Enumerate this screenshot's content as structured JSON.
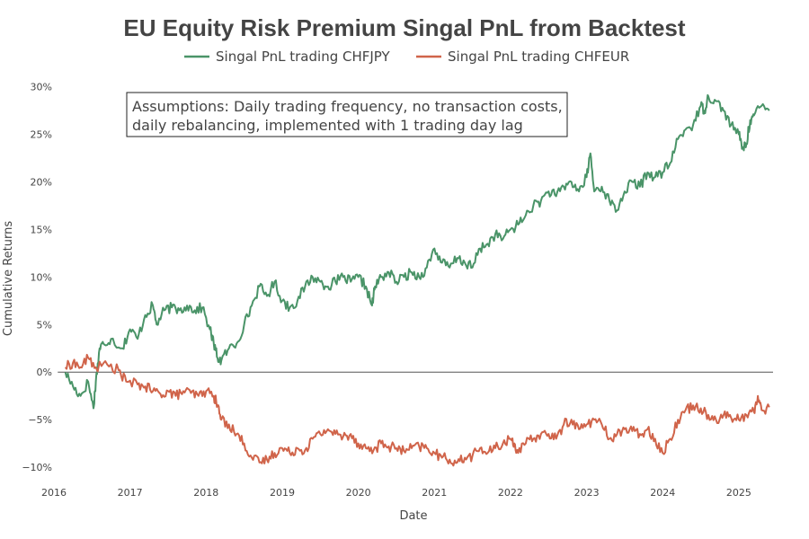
{
  "chart_data": {
    "type": "line",
    "title": "EU Equity Risk Premium Singal PnL from Backtest",
    "xlabel": "Date",
    "ylabel": "Cumulative Returns",
    "xlim": [
      2016.0,
      2025.45
    ],
    "ylim": [
      -11.5,
      31.0
    ],
    "x_ticks": [
      2016,
      2017,
      2018,
      2019,
      2020,
      2021,
      2022,
      2023,
      2024,
      2025
    ],
    "x_tick_labels": [
      "2016",
      "2017",
      "2018",
      "2019",
      "2020",
      "2021",
      "2022",
      "2023",
      "2024",
      "2025"
    ],
    "y_ticks": [
      -10,
      -5,
      0,
      5,
      10,
      15,
      20,
      25,
      30
    ],
    "y_tick_labels": [
      "−10%",
      "−5%",
      "0%",
      "5%",
      "10%",
      "15%",
      "20%",
      "25%",
      "30%"
    ],
    "zero_line": true,
    "grid": false,
    "legend_position": "top-center",
    "annotation": {
      "line1": "Assumptions: Daily trading frequency, no transaction costs,",
      "line2": "daily rebalancing, implemented with 1 trading day lag"
    },
    "series": [
      {
        "name": "Singal PnL trading CHFJPY",
        "color": "#4a9468",
        "x": [
          2016.15,
          2016.25,
          2016.35,
          2016.45,
          2016.52,
          2016.55,
          2016.6,
          2016.65,
          2016.75,
          2016.9,
          2017.0,
          2017.1,
          2017.2,
          2017.3,
          2017.35,
          2017.45,
          2017.55,
          2017.65,
          2017.75,
          2017.85,
          2017.95,
          2018.05,
          2018.1,
          2018.15,
          2018.2,
          2018.3,
          2018.4,
          2018.5,
          2018.6,
          2018.7,
          2018.8,
          2018.9,
          2019.0,
          2019.1,
          2019.2,
          2019.3,
          2019.4,
          2019.5,
          2019.6,
          2019.7,
          2019.8,
          2019.9,
          2020.0,
          2020.1,
          2020.18,
          2020.22,
          2020.3,
          2020.4,
          2020.5,
          2020.6,
          2020.7,
          2020.8,
          2020.9,
          2021.0,
          2021.1,
          2021.2,
          2021.3,
          2021.4,
          2021.5,
          2021.6,
          2021.7,
          2021.8,
          2021.9,
          2022.0,
          2022.1,
          2022.2,
          2022.3,
          2022.4,
          2022.5,
          2022.6,
          2022.7,
          2022.8,
          2022.9,
          2023.0,
          2023.05,
          2023.1,
          2023.2,
          2023.3,
          2023.4,
          2023.5,
          2023.6,
          2023.7,
          2023.8,
          2023.9,
          2024.0,
          2024.1,
          2024.2,
          2024.3,
          2024.4,
          2024.5,
          2024.55,
          2024.6,
          2024.7,
          2024.8,
          2024.9,
          2025.0,
          2025.05,
          2025.1,
          2025.15,
          2025.2,
          2025.3,
          2025.4
        ],
        "values": [
          0.0,
          -1.5,
          -2.5,
          -1.0,
          -3.8,
          -1.0,
          2.5,
          3.0,
          3.5,
          2.5,
          4.5,
          3.5,
          6.0,
          7.0,
          5.0,
          6.5,
          6.8,
          6.5,
          7.0,
          6.5,
          6.8,
          4.5,
          3.0,
          1.5,
          1.2,
          2.5,
          3.0,
          5.0,
          7.0,
          9.0,
          8.0,
          9.5,
          7.5,
          6.8,
          7.5,
          9.0,
          10.0,
          9.5,
          9.0,
          9.5,
          10.0,
          9.5,
          10.0,
          9.0,
          7.0,
          9.0,
          10.0,
          10.5,
          9.5,
          10.0,
          10.5,
          10.0,
          11.0,
          13.0,
          11.5,
          11.0,
          12.0,
          11.5,
          11.0,
          13.0,
          13.5,
          14.5,
          14.0,
          15.0,
          15.5,
          16.5,
          17.5,
          18.0,
          19.0,
          18.5,
          19.5,
          20.0,
          19.0,
          20.5,
          23.0,
          19.0,
          19.5,
          18.0,
          17.0,
          19.0,
          20.0,
          19.5,
          21.0,
          20.5,
          21.0,
          22.0,
          24.5,
          25.5,
          26.0,
          28.0,
          27.5,
          29.0,
          28.5,
          27.5,
          26.0,
          25.0,
          23.5,
          24.0,
          26.5,
          27.0,
          28.0,
          27.5
        ]
      },
      {
        "name": "Singal PnL trading CHFEUR",
        "color": "#d0644a",
        "x": [
          2016.15,
          2016.25,
          2016.35,
          2016.45,
          2016.55,
          2016.7,
          2016.85,
          2016.95,
          2017.1,
          2017.2,
          2017.3,
          2017.4,
          2017.5,
          2017.6,
          2017.7,
          2017.8,
          2017.9,
          2018.0,
          2018.1,
          2018.15,
          2018.2,
          2018.3,
          2018.4,
          2018.5,
          2018.6,
          2018.7,
          2018.8,
          2018.9,
          2019.0,
          2019.1,
          2019.2,
          2019.3,
          2019.4,
          2019.5,
          2019.6,
          2019.7,
          2019.8,
          2019.9,
          2020.0,
          2020.1,
          2020.2,
          2020.3,
          2020.4,
          2020.5,
          2020.6,
          2020.7,
          2020.8,
          2020.9,
          2021.0,
          2021.1,
          2021.2,
          2021.3,
          2021.4,
          2021.5,
          2021.6,
          2021.7,
          2021.8,
          2021.9,
          2022.0,
          2022.05,
          2022.1,
          2022.2,
          2022.3,
          2022.4,
          2022.5,
          2022.6,
          2022.7,
          2022.8,
          2022.9,
          2023.0,
          2023.1,
          2023.2,
          2023.3,
          2023.4,
          2023.5,
          2023.6,
          2023.7,
          2023.8,
          2023.9,
          2024.0,
          2024.1,
          2024.2,
          2024.3,
          2024.4,
          2024.5,
          2024.6,
          2024.7,
          2024.8,
          2024.9,
          2025.0,
          2025.1,
          2025.2,
          2025.25,
          2025.3,
          2025.4
        ],
        "values": [
          0.5,
          1.0,
          0.5,
          1.5,
          0.5,
          0.8,
          0.2,
          -1.0,
          -1.3,
          -1.5,
          -2.0,
          -2.3,
          -2.0,
          -2.5,
          -2.0,
          -2.2,
          -2.5,
          -2.0,
          -2.5,
          -3.5,
          -5.0,
          -5.5,
          -6.5,
          -7.5,
          -9.0,
          -9.5,
          -9.2,
          -8.5,
          -8.0,
          -8.5,
          -8.0,
          -8.2,
          -7.0,
          -6.5,
          -6.0,
          -6.5,
          -6.8,
          -6.5,
          -7.5,
          -8.0,
          -8.2,
          -7.5,
          -7.8,
          -8.0,
          -8.3,
          -8.0,
          -7.8,
          -8.0,
          -8.5,
          -9.0,
          -9.2,
          -9.5,
          -9.0,
          -8.8,
          -8.0,
          -8.5,
          -8.0,
          -7.5,
          -7.0,
          -7.5,
          -8.5,
          -7.5,
          -7.0,
          -6.5,
          -6.5,
          -7.0,
          -5.5,
          -5.0,
          -6.0,
          -5.5,
          -5.0,
          -5.5,
          -7.0,
          -6.5,
          -6.0,
          -6.2,
          -6.5,
          -6.0,
          -7.0,
          -8.5,
          -7.0,
          -5.0,
          -4.0,
          -3.5,
          -3.8,
          -4.5,
          -5.0,
          -4.5,
          -4.8,
          -5.0,
          -4.5,
          -4.2,
          -2.5,
          -4.0,
          -3.7
        ]
      }
    ]
  }
}
